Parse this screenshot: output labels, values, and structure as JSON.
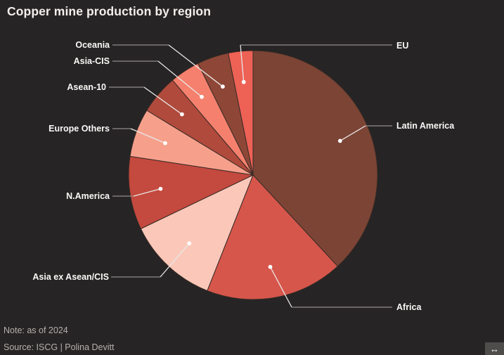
{
  "header": {
    "title": "Copper mine production by region"
  },
  "chart_data": {
    "type": "pie",
    "title": "Copper mine production by region",
    "direction": "clockwise",
    "start_angle_deg": 0,
    "labeling": "outside labels with leader lines and dots",
    "slices": [
      {
        "label": "Latin America",
        "percent": 38.1,
        "color": "#7C4435"
      },
      {
        "label": "Africa",
        "percent": 17.9,
        "color": "#D6564B"
      },
      {
        "label": "Asia ex Asean/CIS",
        "percent": 11.9,
        "color": "#FAC7B9"
      },
      {
        "label": "N.America",
        "percent": 9.5,
        "color": "#C4493E"
      },
      {
        "label": "Europe Others",
        "percent": 6.3,
        "color": "#F6A08C"
      },
      {
        "label": "Asean-10",
        "percent": 5.1,
        "color": "#B04A3C"
      },
      {
        "label": "Asia-CIS",
        "percent": 3.9,
        "color": "#F5806E"
      },
      {
        "label": "Oceania",
        "percent": 4.1,
        "color": "#8E4737"
      },
      {
        "label": "EU",
        "percent": 3.2,
        "color": "#EE6155"
      }
    ]
  },
  "footer": {
    "note": "Note: as of 2024",
    "source": "Source: ISCG | Polina Devitt"
  },
  "icons": {
    "horizontal_resize": "↔"
  },
  "colors": {
    "background": "#262424",
    "slice_border": "#382B26",
    "leader_line_outer": "#8F8C8A",
    "leader_line_inner": "#E9E7E5",
    "leader_dot": "#FFFFFF",
    "label_text": "#FBF9F7",
    "title_text": "#F3EFEC",
    "footer_text": "#B5B1AE"
  }
}
